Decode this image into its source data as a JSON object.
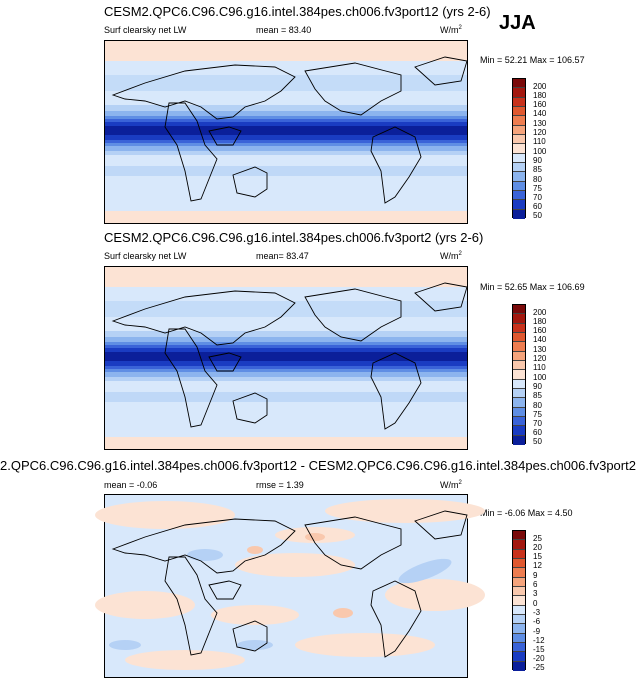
{
  "season": "JJA",
  "panels": [
    {
      "title": "CESM2.QPC6.C96.C96.g16.intel.384pes.ch006.fv3port12 (yrs 2-6)",
      "variable": "Surf clearsky net LW",
      "mean": "mean =  83.40",
      "units": "W/m",
      "units_sup": "2",
      "minmax": "Min =  52.21 Max = 106.57",
      "levels": [
        "200",
        "180",
        "160",
        "140",
        "130",
        "120",
        "110",
        "100",
        "90",
        "85",
        "80",
        "75",
        "70",
        "60",
        "50"
      ]
    },
    {
      "title": "CESM2.QPC6.C96.C96.g16.intel.384pes.ch006.fv3port2 (yrs 2-6)",
      "variable": "Surf clearsky net LW",
      "mean": "mean=  83.47",
      "units": "W/m",
      "units_sup": "2",
      "minmax": "Min =  52.65 Max = 106.69",
      "levels": [
        "200",
        "180",
        "160",
        "140",
        "130",
        "120",
        "110",
        "100",
        "90",
        "85",
        "80",
        "75",
        "70",
        "60",
        "50"
      ]
    },
    {
      "title": "2.QPC6.C96.C96.g16.intel.384pes.ch006.fv3port12 - CESM2.QPC6.C96.C96.g16.intel.384pes.ch006.fv3port2",
      "mean": "mean =  -0.06",
      "rmse": "rmse =   1.39",
      "units": "W/m",
      "units_sup": "2",
      "minmax": "Min =  -6.06 Max =   4.50",
      "levels": [
        "25",
        "20",
        "15",
        "12",
        "9",
        "6",
        "3",
        "0",
        "-3",
        "-6",
        "-9",
        "-12",
        "-15",
        "-20",
        "-25"
      ]
    }
  ],
  "colors": {
    "abs_scale": [
      "#7a0a0a",
      "#a3180f",
      "#c8321c",
      "#e0582f",
      "#ee7d50",
      "#f5a47c",
      "#f9c8ad",
      "#fce3d4",
      "#d8e8fb",
      "#b5d1f5",
      "#8cb4ee",
      "#5f8ee4",
      "#3a63d8",
      "#1a3cc2",
      "#0b1f9a"
    ],
    "diff_scale": [
      "#7a0a0a",
      "#a3180f",
      "#c8321c",
      "#e0582f",
      "#ee7d50",
      "#f5a47c",
      "#f9c8ad",
      "#fce3d4",
      "#d8e8fb",
      "#b5d1f5",
      "#8cb4ee",
      "#5f8ee4",
      "#3a63d8",
      "#1a3cc2",
      "#0b1f9a"
    ]
  }
}
